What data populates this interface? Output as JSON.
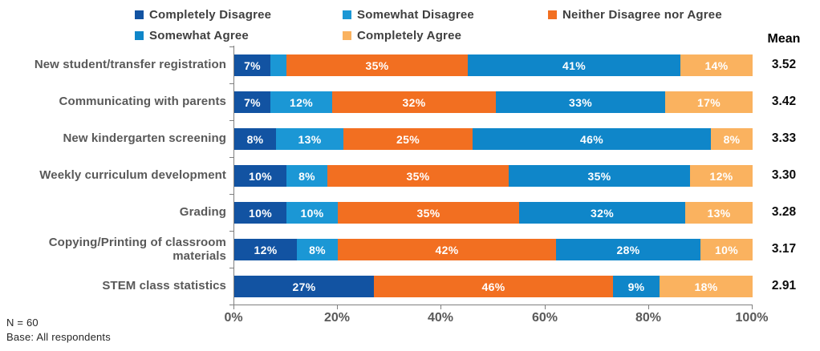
{
  "chart_data": {
    "type": "bar",
    "orientation": "horizontal-stacked",
    "title": "",
    "xlabel": "",
    "ylabel": "",
    "xlim": [
      0,
      100
    ],
    "x_ticks": [
      "0%",
      "20%",
      "40%",
      "60%",
      "80%",
      "100%"
    ],
    "grid": false,
    "legend_position": "top",
    "mean_header": "Mean",
    "categories": [
      "New student/transfer registration",
      "Communicating with parents",
      "New kindergarten screening",
      "Weekly curriculum development",
      "Grading",
      "Copying/Printing of classroom materials",
      "STEM class statistics"
    ],
    "series": [
      {
        "name": "Completely Disagree",
        "color": "#1253A2",
        "values": [
          7,
          7,
          8,
          10,
          10,
          12,
          27
        ]
      },
      {
        "name": "Somewhat Disagree",
        "color": "#1B97D5",
        "values": [
          3,
          12,
          13,
          8,
          10,
          8,
          0
        ]
      },
      {
        "name": "Neither Disagree nor Agree",
        "color": "#F26F21",
        "values": [
          35,
          32,
          25,
          35,
          35,
          42,
          46
        ]
      },
      {
        "name": "Somewhat Agree",
        "color": "#0F86C9",
        "values": [
          41,
          33,
          46,
          35,
          32,
          28,
          9
        ]
      },
      {
        "name": "Completely Agree",
        "color": "#FAB25F",
        "values": [
          14,
          17,
          8,
          12,
          13,
          10,
          18
        ]
      }
    ],
    "bar_label_format": "{value}%",
    "bar_label_color": "#FFFFFF",
    "min_labeled_value": 6,
    "means": [
      "3.52",
      "3.42",
      "3.33",
      "3.30",
      "3.28",
      "3.17",
      "2.91"
    ],
    "notes": [
      "N = 60",
      "Base: All respondents"
    ]
  }
}
